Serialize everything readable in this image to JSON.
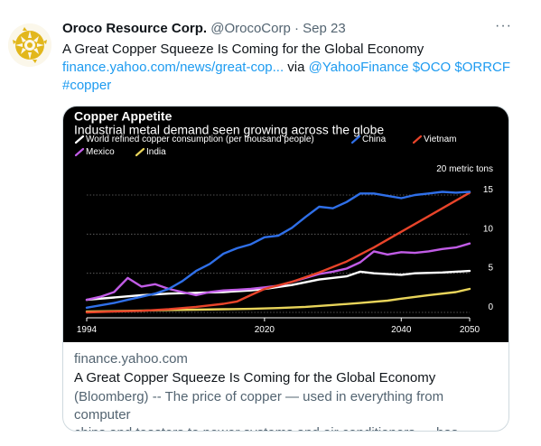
{
  "tweet": {
    "author_name": "Oroco Resource Corp.",
    "author_handle": "@OrocoCorp",
    "separator": "·",
    "date": "Sep 23",
    "more_icon": "more-horizontal-icon",
    "text_line1": "A Great Copper Squeeze Is Coming for the Global Economy",
    "link_url": "finance.yahoo.com/news/great-cop...",
    "via": " via ",
    "mention": "@YahooFinance",
    "cashtag1": "$OCO",
    "cashtag2": "$ORRCF",
    "hashtag": "#copper"
  },
  "card": {
    "domain": "finance.yahoo.com",
    "title": "A Great Copper Squeeze Is Coming for the Global Economy",
    "description_line1": "(Bloomberg) -- The price of copper — used in everything from computer",
    "description_line2": "chips and toasters to power systems and air conditioners — has fallen..."
  },
  "chart_data": {
    "type": "line",
    "title": "Copper Appetite",
    "subtitle": "Industrial metal demand seen growing across the globe",
    "unit_label": "20 metric tons",
    "xlim": [
      1994,
      2050
    ],
    "ylim": [
      -1,
      20
    ],
    "x_ticks": [
      1994,
      2020,
      2040,
      2050
    ],
    "y_ticks": [
      0,
      5,
      10,
      15
    ],
    "grid": true,
    "legend_position": "top-left",
    "series": [
      {
        "name": "World refined copper consumption (per thousand people)",
        "color": "#ffffff",
        "x": [
          1994,
          1998,
          2002,
          2006,
          2010,
          2014,
          2018,
          2020,
          2024,
          2028,
          2032,
          2034,
          2036,
          2040,
          2042,
          2046,
          2050
        ],
        "y": [
          1.6,
          1.9,
          2.2,
          2.4,
          2.5,
          2.6,
          2.8,
          3.0,
          3.5,
          4.2,
          4.6,
          5.2,
          5.0,
          4.8,
          5.0,
          5.1,
          5.3
        ]
      },
      {
        "name": "China",
        "color": "#2f6fe8",
        "x": [
          1994,
          1996,
          1998,
          2000,
          2002,
          2004,
          2006,
          2008,
          2010,
          2012,
          2014,
          2016,
          2018,
          2020,
          2022,
          2024,
          2026,
          2028,
          2030,
          2032,
          2034,
          2036,
          2038,
          2040,
          2042,
          2044,
          2046,
          2048,
          2050
        ],
        "y": [
          0.6,
          0.9,
          1.2,
          1.6,
          2.0,
          2.4,
          3.0,
          4.0,
          5.3,
          6.2,
          7.5,
          8.2,
          8.7,
          9.6,
          9.8,
          10.8,
          12.2,
          13.5,
          13.3,
          14.1,
          15.2,
          15.2,
          14.9,
          14.6,
          15.0,
          15.2,
          15.4,
          15.3,
          15.4
        ]
      },
      {
        "name": "Vietnam",
        "color": "#e8442a",
        "x": [
          1994,
          1998,
          2002,
          2006,
          2010,
          2014,
          2016,
          2018,
          2020,
          2024,
          2028,
          2032,
          2036,
          2040,
          2044,
          2048,
          2050
        ],
        "y": [
          0.0,
          0.1,
          0.2,
          0.4,
          0.7,
          1.1,
          1.4,
          2.2,
          3.0,
          3.9,
          5.1,
          6.5,
          8.3,
          10.3,
          12.3,
          14.3,
          15.3
        ]
      },
      {
        "name": "Mexico",
        "color": "#c15ce6",
        "x": [
          1994,
          1996,
          1998,
          2000,
          2002,
          2004,
          2006,
          2008,
          2010,
          2012,
          2014,
          2016,
          2018,
          2020,
          2022,
          2024,
          2026,
          2028,
          2030,
          2032,
          2034,
          2036,
          2038,
          2040,
          2042,
          2044,
          2046,
          2048,
          2050
        ],
        "y": [
          1.6,
          2.0,
          2.6,
          4.4,
          3.3,
          3.6,
          3.0,
          2.6,
          2.2,
          2.6,
          2.8,
          2.9,
          3.0,
          3.2,
          3.4,
          3.9,
          4.4,
          4.9,
          5.2,
          5.6,
          6.4,
          7.8,
          7.4,
          7.7,
          7.6,
          7.8,
          8.1,
          8.3,
          8.8
        ]
      },
      {
        "name": "India",
        "color": "#e8d45a",
        "x": [
          1994,
          2000,
          2006,
          2010,
          2014,
          2018,
          2022,
          2026,
          2030,
          2034,
          2038,
          2040,
          2044,
          2048,
          2050
        ],
        "y": [
          0.1,
          0.2,
          0.3,
          0.35,
          0.4,
          0.45,
          0.55,
          0.7,
          0.95,
          1.2,
          1.5,
          1.75,
          2.2,
          2.6,
          3.0
        ]
      }
    ]
  }
}
